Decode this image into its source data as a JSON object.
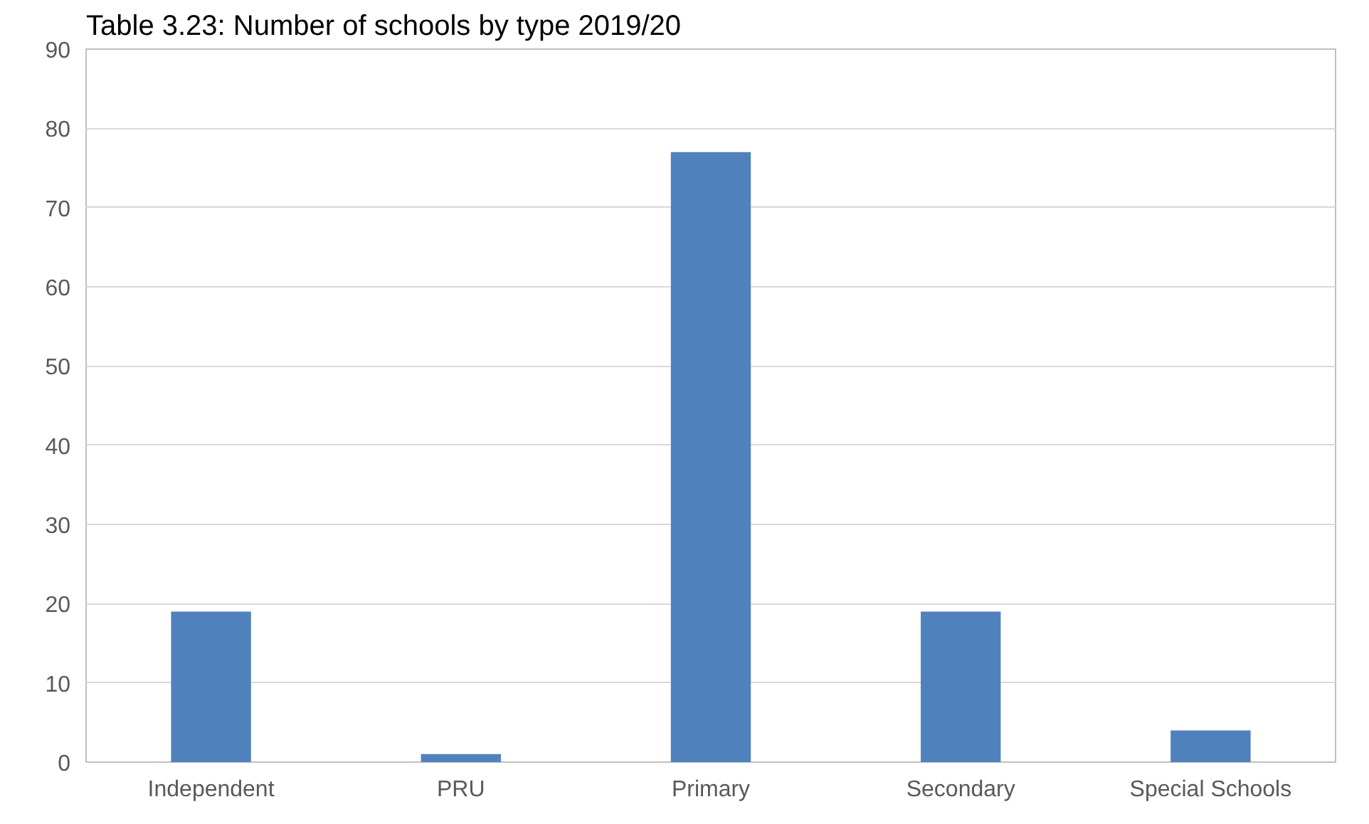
{
  "chart_data": {
    "type": "bar",
    "title": "Table 3.23: Number of schools by type 2019/20",
    "categories": [
      "Independent",
      "PRU",
      "Primary",
      "Secondary",
      "Special Schools"
    ],
    "values": [
      19,
      1,
      77,
      19,
      4
    ],
    "color": "#4f81bd",
    "ylim": [
      0,
      90
    ],
    "yticks": [
      0,
      10,
      20,
      30,
      40,
      50,
      60,
      70,
      80,
      90
    ],
    "grid": "y"
  }
}
